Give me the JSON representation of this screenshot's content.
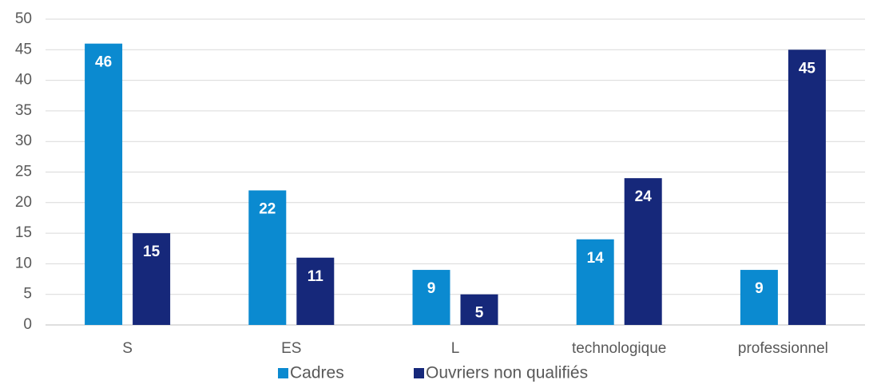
{
  "chart_data": {
    "type": "bar",
    "categories": [
      "S",
      "ES",
      "L",
      "technologique",
      "professionnel"
    ],
    "series": [
      {
        "name": "Cadres",
        "color": "#0b8ad0",
        "values": [
          46,
          22,
          9,
          14,
          9
        ]
      },
      {
        "name": "Ouvriers non qualifiés",
        "color": "#16287a",
        "values": [
          15,
          11,
          5,
          24,
          45
        ]
      }
    ],
    "ylim": [
      0,
      50
    ],
    "yticks": [
      0,
      5,
      10,
      15,
      20,
      25,
      30,
      35,
      40,
      45,
      50
    ],
    "grid": true
  }
}
